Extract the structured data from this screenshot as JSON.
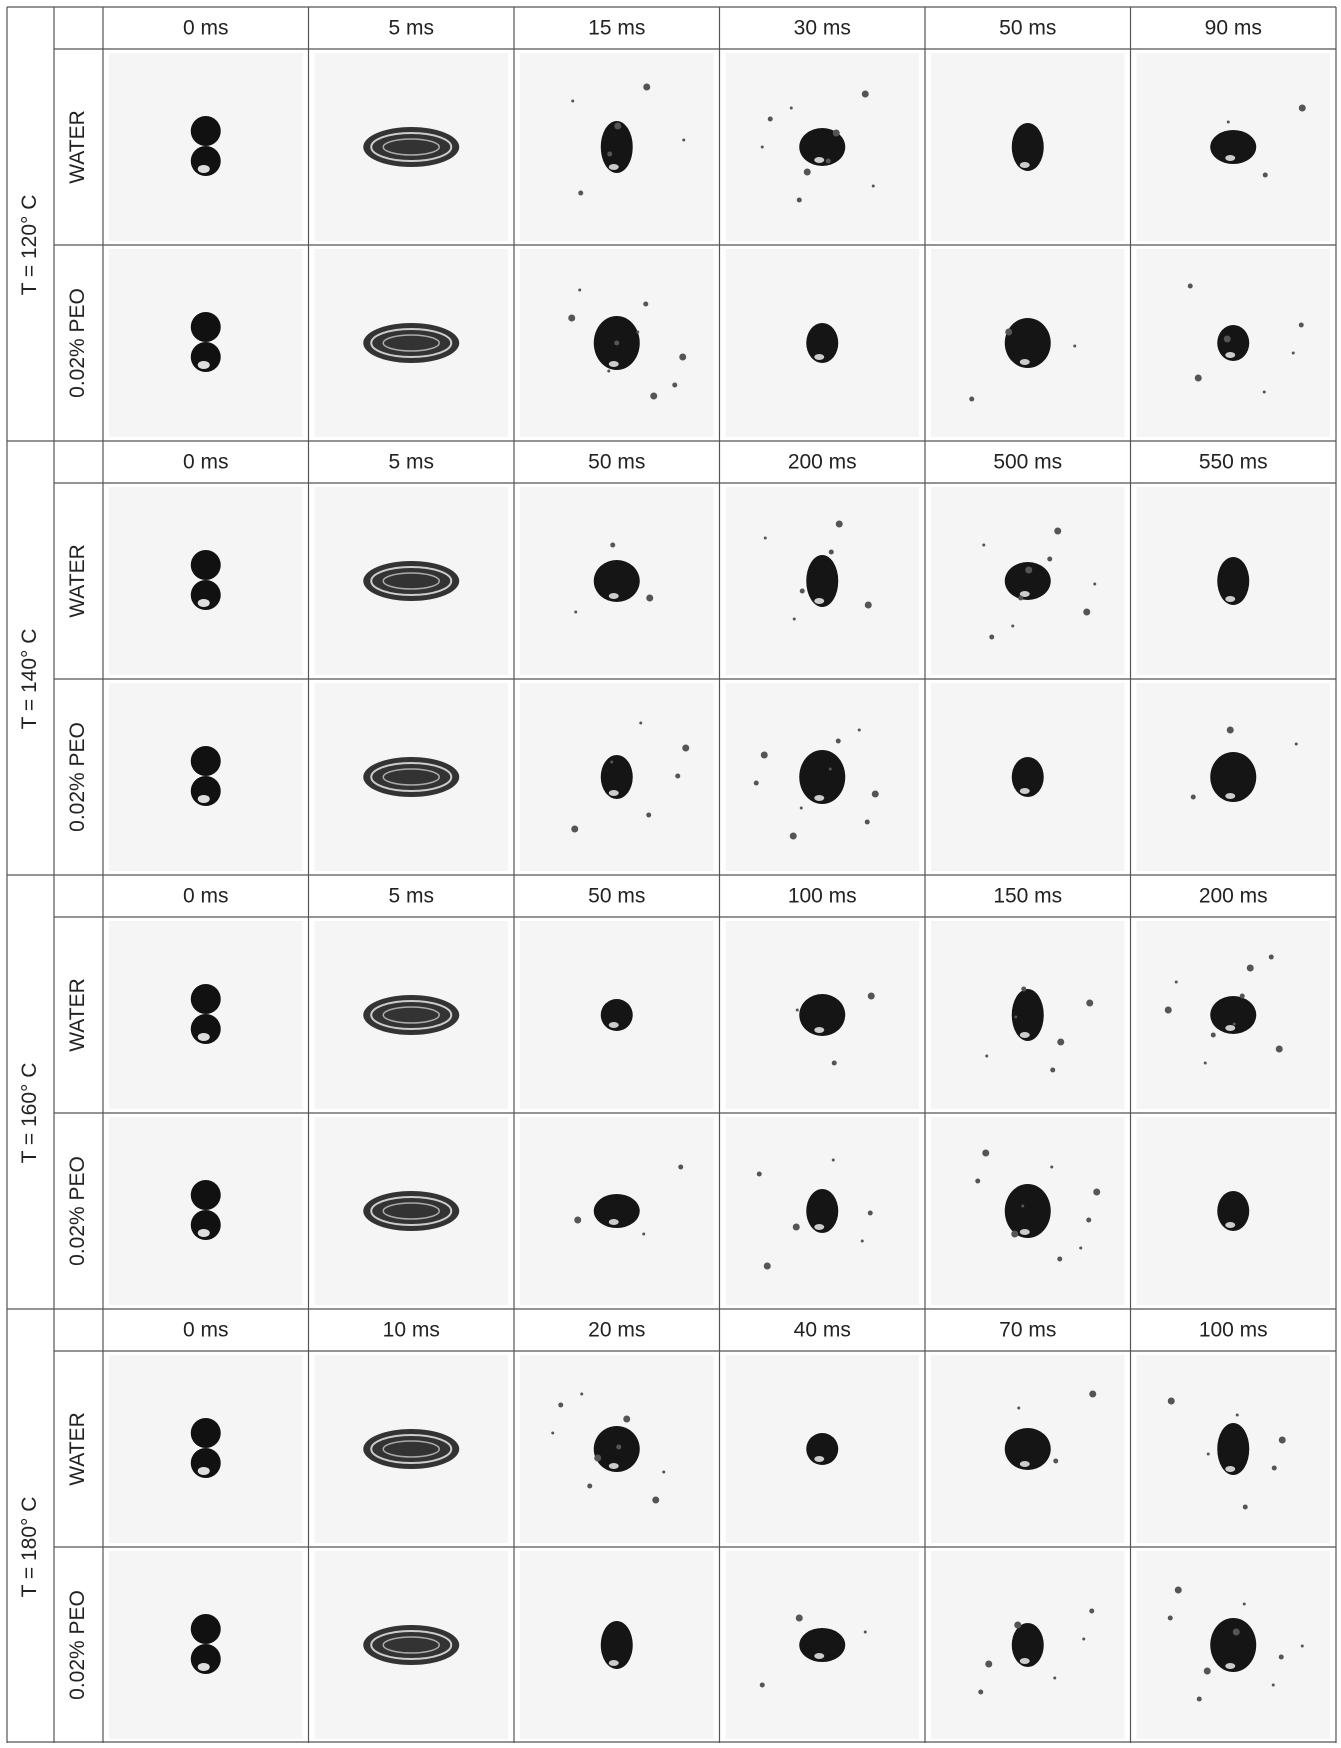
{
  "groups": [
    {
      "temperature": "T = 120° C",
      "times": [
        "0 ms",
        "5 ms",
        "15 ms",
        "30 ms",
        "50 ms",
        "90 ms"
      ],
      "rows": [
        "WATER",
        "0.02% PEO"
      ]
    },
    {
      "temperature": "T = 140° C",
      "times": [
        "0 ms",
        "5 ms",
        "50 ms",
        "200 ms",
        "500 ms",
        "550 ms"
      ],
      "rows": [
        "WATER",
        "0.02% PEO"
      ]
    },
    {
      "temperature": "T = 160° C",
      "times": [
        "0 ms",
        "5 ms",
        "50 ms",
        "100 ms",
        "150 ms",
        "200 ms"
      ],
      "rows": [
        "WATER",
        "0.02% PEO"
      ]
    },
    {
      "temperature": "T = 180° C",
      "times": [
        "0 ms",
        "10 ms",
        "20 ms",
        "40 ms",
        "70 ms",
        "100 ms"
      ],
      "rows": [
        "WATER",
        "0.02% PEO"
      ]
    }
  ]
}
